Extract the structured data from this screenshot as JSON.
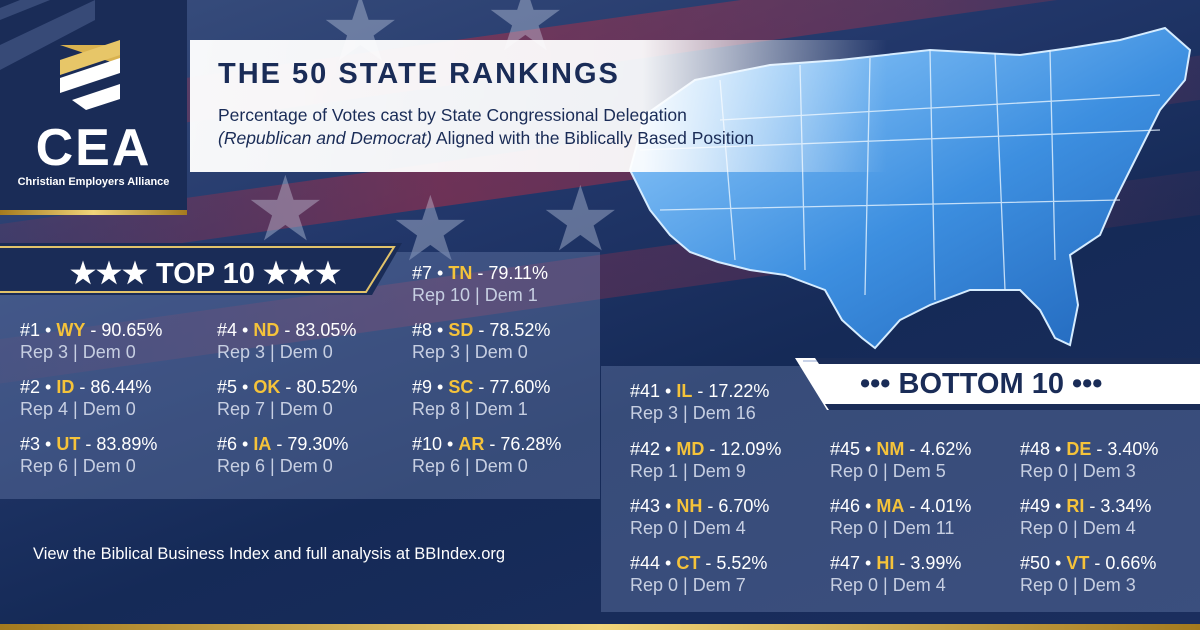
{
  "logo": {
    "abbrev": "CEA",
    "name": "Christian Employers Alliance"
  },
  "header": {
    "title": "THE 50 STATE RANKINGS",
    "subtitle_line1": "Percentage of Votes cast by State Congressional Delegation",
    "subtitle_italic": "(Republican and Democrat)",
    "subtitle_rest": " Aligned with the Biblically Based Position"
  },
  "top10": {
    "heading": "★★★ TOP 10 ★★★",
    "entries": [
      {
        "rank": "#1",
        "state": "WY",
        "pct": " - 90.65%",
        "votes": "Rep 3 | Dem 0"
      },
      {
        "rank": "#2",
        "state": "ID",
        "pct": " - 86.44%",
        "votes": "Rep 4 | Dem 0"
      },
      {
        "rank": "#3",
        "state": "UT",
        "pct": " - 83.89%",
        "votes": "Rep 6 | Dem 0"
      },
      {
        "rank": "#4",
        "state": "ND",
        "pct": " - 83.05%",
        "votes": "Rep 3 | Dem 0"
      },
      {
        "rank": "#5",
        "state": "OK",
        "pct": " - 80.52%",
        "votes": "Rep 7 | Dem 0"
      },
      {
        "rank": "#6",
        "state": "IA",
        "pct": " - 79.30%",
        "votes": "Rep 6 | Dem 0"
      },
      {
        "rank": "#7",
        "state": "TN",
        "pct": " - 79.11%",
        "votes": "Rep 10 | Dem 1"
      },
      {
        "rank": "#8",
        "state": "SD",
        "pct": " - 78.52%",
        "votes": "Rep 3 | Dem 0"
      },
      {
        "rank": "#9",
        "state": "SC",
        "pct": " - 77.60%",
        "votes": "Rep 8 | Dem 1"
      },
      {
        "rank": "#10",
        "state": "AR",
        "pct": " - 76.28%",
        "votes": "Rep 6 | Dem 0"
      }
    ]
  },
  "bottom10": {
    "heading": "••• BOTTOM 10 •••",
    "entries": [
      {
        "rank": "#41",
        "state": "IL",
        "pct": " - 17.22%",
        "votes": "Rep 3 | Dem 16"
      },
      {
        "rank": "#42",
        "state": "MD",
        "pct": " - 12.09%",
        "votes": "Rep 1 | Dem 9"
      },
      {
        "rank": "#43",
        "state": "NH",
        "pct": " - 6.70%",
        "votes": "Rep 0 | Dem 4"
      },
      {
        "rank": "#44",
        "state": "CT",
        "pct": " - 5.52%",
        "votes": "Rep 0 | Dem 7"
      },
      {
        "rank": "#45",
        "state": "NM",
        "pct": " - 4.62%",
        "votes": "Rep 0 | Dem 5"
      },
      {
        "rank": "#46",
        "state": "MA",
        "pct": " - 4.01%",
        "votes": "Rep 0 | Dem 11"
      },
      {
        "rank": "#47",
        "state": "HI",
        "pct": " - 3.99%",
        "votes": "Rep 0 | Dem 4"
      },
      {
        "rank": "#48",
        "state": "DE",
        "pct": " - 3.40%",
        "votes": "Rep 0 | Dem 3"
      },
      {
        "rank": "#49",
        "state": "RI",
        "pct": " - 3.34%",
        "votes": "Rep 0 | Dem 4"
      },
      {
        "rank": "#50",
        "state": "VT",
        "pct": " - 0.66%",
        "votes": "Rep 0 | Dem 3"
      }
    ]
  },
  "footer": {
    "text": "View the Biblical Business Index and full analysis at BBIndex.org"
  },
  "colors": {
    "navy": "#1a2c57",
    "gold": "#f5c33a",
    "subtext": "#c7cfe2"
  },
  "icons": [
    "cea-chevron-logo-icon",
    "us-map-icon",
    "star-icon"
  ]
}
